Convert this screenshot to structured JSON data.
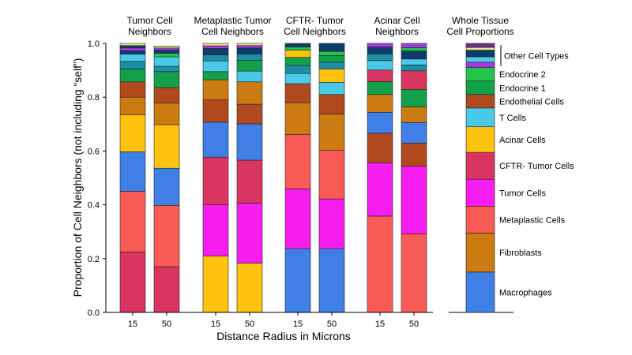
{
  "chart_data": {
    "type": "bar",
    "stacked": true,
    "ylabel": "Proportion of Cell Neighbors (not including “self”)",
    "xlabel": "Distance Radius in Microns",
    "ylim": [
      0,
      1.0
    ],
    "yticks": [
      "0.0",
      "0.2",
      "0.4",
      "0.6",
      "0.8",
      "1.0"
    ],
    "legend_position": "right, alongside whole-tissue bar",
    "colors": {
      "Macrophages": "#3f7fe6",
      "Fibroblasts": "#cc7a12",
      "Metaplastic Cells": "#f85a55",
      "Tumor Cells": "#f71cf0",
      "CFTR- Tumor Cells": "#d93561",
      "Acinar Cells": "#fec30e",
      "T Cells": "#4bc9e8",
      "Endothelial Cells": "#b0491d",
      "Endocrine 1": "#12a04b",
      "Endocrine 2": "#22c548",
      "Other 1": "#1c8fa6",
      "Other 2": "#0d3d6b",
      "Other 3": "#a23be0",
      "Other 4": "#e8e68a",
      "Other 5": "#6a2f8f"
    },
    "groups": [
      {
        "title": "Tumor Cell\nNeighbors",
        "bars": [
          {
            "x": "15",
            "segments": [
              {
                "type": "CFTR- Tumor Cells",
                "value": 0.225
              },
              {
                "type": "Metaplastic Cells",
                "value": 0.225
              },
              {
                "type": "Macrophages",
                "value": 0.147
              },
              {
                "type": "Acinar Cells",
                "value": 0.137
              },
              {
                "type": "Fibroblasts",
                "value": 0.066
              },
              {
                "type": "Endothelial Cells",
                "value": 0.057
              },
              {
                "type": "Endocrine 1",
                "value": 0.048
              },
              {
                "type": "Other 1",
                "value": 0.028
              },
              {
                "type": "T Cells",
                "value": 0.027
              },
              {
                "type": "Other 2",
                "value": 0.013
              },
              {
                "type": "Other 3",
                "value": 0.01
              },
              {
                "type": "Other 2",
                "value": 0.009
              },
              {
                "type": "Other 4",
                "value": 0.008
              }
            ]
          },
          {
            "x": "50",
            "segments": [
              {
                "type": "CFTR- Tumor Cells",
                "value": 0.17
              },
              {
                "type": "Metaplastic Cells",
                "value": 0.228
              },
              {
                "type": "Macrophages",
                "value": 0.138
              },
              {
                "type": "Acinar Cells",
                "value": 0.162
              },
              {
                "type": "Fibroblasts",
                "value": 0.08
              },
              {
                "type": "Endothelial Cells",
                "value": 0.058
              },
              {
                "type": "Endocrine 1",
                "value": 0.059
              },
              {
                "type": "Other 1",
                "value": 0.02
              },
              {
                "type": "T Cells",
                "value": 0.035
              },
              {
                "type": "Endocrine 2",
                "value": 0.013
              },
              {
                "type": "Other 2",
                "value": 0.012
              },
              {
                "type": "Other 3",
                "value": 0.008
              },
              {
                "type": "Other 4",
                "value": 0.007
              }
            ]
          }
        ]
      },
      {
        "title": "Metaplastic Tumor\nCell Neighbors",
        "bars": [
          {
            "x": "15",
            "segments": [
              {
                "type": "Acinar Cells",
                "value": 0.21
              },
              {
                "type": "Tumor Cells",
                "value": 0.19
              },
              {
                "type": "CFTR- Tumor Cells",
                "value": 0.177
              },
              {
                "type": "Macrophages",
                "value": 0.13
              },
              {
                "type": "Endothelial Cells",
                "value": 0.083
              },
              {
                "type": "Fibroblasts",
                "value": 0.075
              },
              {
                "type": "Endocrine 1",
                "value": 0.03
              },
              {
                "type": "T Cells",
                "value": 0.04
              },
              {
                "type": "Other 1",
                "value": 0.022
              },
              {
                "type": "Other 2",
                "value": 0.024
              },
              {
                "type": "Other 3",
                "value": 0.01
              },
              {
                "type": "Other 4",
                "value": 0.009
              }
            ]
          },
          {
            "x": "50",
            "segments": [
              {
                "type": "Acinar Cells",
                "value": 0.183
              },
              {
                "type": "Tumor Cells",
                "value": 0.223
              },
              {
                "type": "CFTR- Tumor Cells",
                "value": 0.16
              },
              {
                "type": "Macrophages",
                "value": 0.135
              },
              {
                "type": "Endothelial Cells",
                "value": 0.073
              },
              {
                "type": "Fibroblasts",
                "value": 0.083
              },
              {
                "type": "T Cells",
                "value": 0.04
              },
              {
                "type": "Endocrine 1",
                "value": 0.04
              },
              {
                "type": "Other 1",
                "value": 0.023
              },
              {
                "type": "Other 2",
                "value": 0.023
              },
              {
                "type": "Other 3",
                "value": 0.009
              },
              {
                "type": "Other 4",
                "value": 0.008
              }
            ]
          }
        ]
      },
      {
        "title": "CFTR- Tumor\nCell Neighbors",
        "bars": [
          {
            "x": "15",
            "segments": [
              {
                "type": "Macrophages",
                "value": 0.237
              },
              {
                "type": "Tumor Cells",
                "value": 0.222
              },
              {
                "type": "Metaplastic Cells",
                "value": 0.203
              },
              {
                "type": "Fibroblasts",
                "value": 0.118
              },
              {
                "type": "Endothelial Cells",
                "value": 0.07
              },
              {
                "type": "T Cells",
                "value": 0.038
              },
              {
                "type": "Other 1",
                "value": 0.03
              },
              {
                "type": "Endocrine 1",
                "value": 0.03
              },
              {
                "type": "Acinar Cells",
                "value": 0.027
              },
              {
                "type": "Endocrine 2",
                "value": 0.012
              },
              {
                "type": "Other 2",
                "value": 0.013
              }
            ]
          },
          {
            "x": "50",
            "segments": [
              {
                "type": "Macrophages",
                "value": 0.237
              },
              {
                "type": "Tumor Cells",
                "value": 0.185
              },
              {
                "type": "Metaplastic Cells",
                "value": 0.18
              },
              {
                "type": "Fibroblasts",
                "value": 0.135
              },
              {
                "type": "Endothelial Cells",
                "value": 0.073
              },
              {
                "type": "T Cells",
                "value": 0.045
              },
              {
                "type": "Acinar Cells",
                "value": 0.05
              },
              {
                "type": "Other 1",
                "value": 0.025
              },
              {
                "type": "Endocrine 1",
                "value": 0.025
              },
              {
                "type": "Endocrine 2",
                "value": 0.015
              },
              {
                "type": "Other 2",
                "value": 0.03
              }
            ]
          }
        ]
      },
      {
        "title": "Acinar Cell\nNeighbors",
        "bars": [
          {
            "x": "15",
            "segments": [
              {
                "type": "Metaplastic Cells",
                "value": 0.358
              },
              {
                "type": "Tumor Cells",
                "value": 0.198
              },
              {
                "type": "Endothelial Cells",
                "value": 0.11
              },
              {
                "type": "Macrophages",
                "value": 0.078
              },
              {
                "type": "Fibroblasts",
                "value": 0.066
              },
              {
                "type": "Endocrine 1",
                "value": 0.048
              },
              {
                "type": "CFTR- Tumor Cells",
                "value": 0.043
              },
              {
                "type": "T Cells",
                "value": 0.035
              },
              {
                "type": "Other 1",
                "value": 0.025
              },
              {
                "type": "Other 2",
                "value": 0.025
              },
              {
                "type": "Other 3",
                "value": 0.014
              }
            ]
          },
          {
            "x": "50",
            "segments": [
              {
                "type": "Metaplastic Cells",
                "value": 0.292
              },
              {
                "type": "Tumor Cells",
                "value": 0.252
              },
              {
                "type": "Endothelial Cells",
                "value": 0.085
              },
              {
                "type": "Macrophages",
                "value": 0.077
              },
              {
                "type": "Fibroblasts",
                "value": 0.058
              },
              {
                "type": "Endocrine 1",
                "value": 0.065
              },
              {
                "type": "CFTR- Tumor Cells",
                "value": 0.069
              },
              {
                "type": "Other 1",
                "value": 0.022
              },
              {
                "type": "T Cells",
                "value": 0.022
              },
              {
                "type": "Other 2",
                "value": 0.03
              },
              {
                "type": "Endocrine 2",
                "value": 0.012
              },
              {
                "type": "Other 3",
                "value": 0.016
              }
            ]
          }
        ]
      }
    ],
    "whole_tissue": {
      "title": "Whole Tissue\nCell Proportions",
      "segments": [
        {
          "type": "Macrophages",
          "label": "Macrophages",
          "value": 0.15
        },
        {
          "type": "Fibroblasts",
          "label": "Fibroblasts",
          "value": 0.145
        },
        {
          "type": "Metaplastic Cells",
          "label": "Metaplastic Cells",
          "value": 0.1
        },
        {
          "type": "Tumor Cells",
          "label": "Tumor Cells",
          "value": 0.1
        },
        {
          "type": "CFTR- Tumor Cells",
          "label": "CFTR- Tumor Cells",
          "value": 0.1
        },
        {
          "type": "Acinar Cells",
          "label": "Acinar Cells",
          "value": 0.095
        },
        {
          "type": "T Cells",
          "label": "T Cells",
          "value": 0.07
        },
        {
          "type": "Endothelial Cells",
          "label": "Endothelial Cells",
          "value": 0.05
        },
        {
          "type": "Endocrine 1",
          "label": "Endocrine 1",
          "value": 0.05
        },
        {
          "type": "Endocrine 2",
          "label": "Endocrine 2",
          "value": 0.05
        },
        {
          "type": "Other 3",
          "label": "",
          "value": 0.02
        },
        {
          "type": "T Cells",
          "label": "",
          "value": 0.02
        },
        {
          "type": "Other 2",
          "label": "",
          "value": 0.025
        },
        {
          "type": "Other 4",
          "label": "",
          "value": 0.01
        },
        {
          "type": "Other 5",
          "label": "",
          "value": 0.015
        }
      ],
      "bracket_label": "Other Cell Types"
    }
  }
}
